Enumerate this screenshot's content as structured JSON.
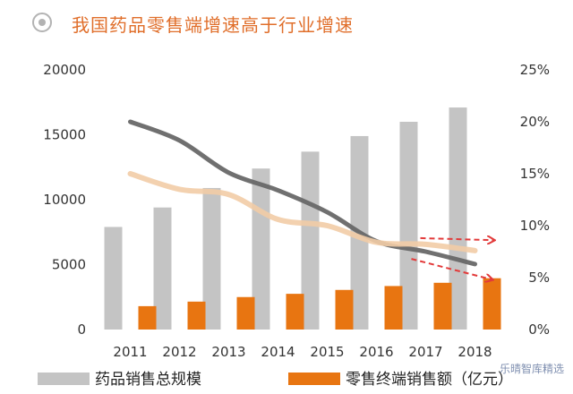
{
  "title": "我国药品零售端增速高于行业增速",
  "watermark": "乐晴智库精选",
  "colors": {
    "bar_total": "#c4c4c4",
    "bar_retail": "#e87511",
    "line_total": "#686868",
    "line_retail": "#f2cca6",
    "arrow": "#e23a3a",
    "title": "#e06e2a"
  },
  "chart_data": {
    "type": "bar",
    "categories": [
      "2011",
      "2012",
      "2013",
      "2014",
      "2015",
      "2016",
      "2017",
      "2018"
    ],
    "y_left": {
      "ticks": [
        "0",
        "5000",
        "10000",
        "15000",
        "20000"
      ],
      "ylim": [
        0,
        20000
      ]
    },
    "y_right": {
      "ticks": [
        "0%",
        "5%",
        "10%",
        "15%",
        "20%",
        "25%"
      ],
      "ylim": [
        0,
        25
      ]
    },
    "series": [
      {
        "name": "药品销售总规模",
        "kind": "bar",
        "axis": "left",
        "values": [
          7900,
          9400,
          10900,
          12400,
          13700,
          14900,
          16000,
          17100
        ]
      },
      {
        "name": "零售终端销售额（亿元）",
        "kind": "bar",
        "axis": "left",
        "values": [
          1800,
          2150,
          2500,
          2750,
          3050,
          3350,
          3600,
          3950
        ]
      },
      {
        "kind": "line",
        "axis": "right",
        "color_key": "line_total",
        "values": [
          20.0,
          18.2,
          15.1,
          13.4,
          11.3,
          8.5,
          7.5,
          6.3
        ]
      },
      {
        "kind": "line",
        "axis": "right",
        "color_key": "line_retail",
        "values": [
          15.0,
          13.5,
          13.0,
          10.6,
          10.0,
          8.4,
          8.2,
          7.6
        ]
      }
    ],
    "legend": [
      {
        "label": "药品销售总规模",
        "color_key": "bar_total"
      },
      {
        "label": "零售终端销售额（亿元）",
        "color_key": "bar_retail"
      }
    ],
    "legend_position": "bottom",
    "grid": false
  }
}
